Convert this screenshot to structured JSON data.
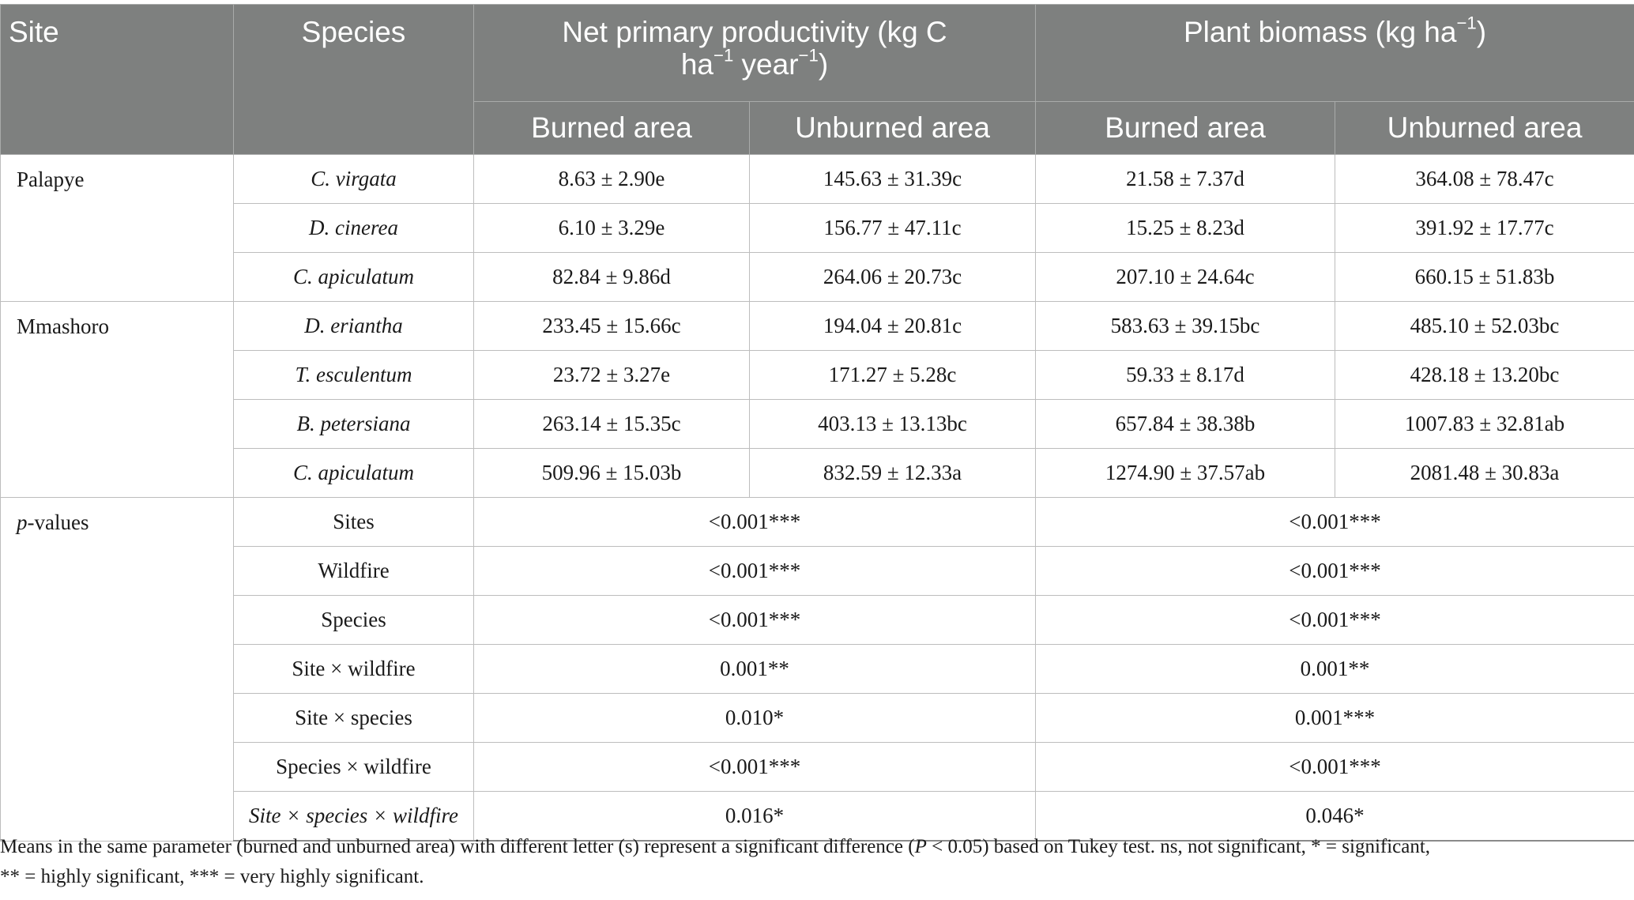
{
  "table": {
    "headers": {
      "site": "Site",
      "species": "Species",
      "npp_line1": "Net primary productivity (kg C",
      "npp_unit_a": "ha",
      "npp_unit_a_sup": "−1",
      "npp_unit_b": " year",
      "npp_unit_b_sup": "−1",
      "npp_unit_end": ")",
      "biomass_text": "Plant biomass (kg ha",
      "biomass_sup": "−1",
      "biomass_end": ")",
      "burned": "Burned area",
      "unburned": "Unburned area"
    },
    "sites": [
      {
        "name": "Palapye",
        "rows": [
          {
            "species": "C. virgata",
            "npp_burned": "8.63 ± 2.90e",
            "npp_unburned": "145.63 ± 31.39c",
            "bio_burned": "21.58 ± 7.37d",
            "bio_unburned": "364.08 ± 78.47c"
          },
          {
            "species": "D. cinerea",
            "npp_burned": "6.10 ± 3.29e",
            "npp_unburned": "156.77 ± 47.11c",
            "bio_burned": "15.25 ± 8.23d",
            "bio_unburned": "391.92 ± 17.77c"
          },
          {
            "species": "C. apiculatum",
            "npp_burned": "82.84 ± 9.86d",
            "npp_unburned": "264.06 ± 20.73c",
            "bio_burned": "207.10 ± 24.64c",
            "bio_unburned": "660.15 ± 51.83b"
          }
        ]
      },
      {
        "name": "Mmashoro",
        "rows": [
          {
            "species": "D. eriantha",
            "npp_burned": "233.45 ± 15.66c",
            "npp_unburned": "194.04 ± 20.81c",
            "bio_burned": "583.63 ± 39.15bc",
            "bio_unburned": "485.10 ± 52.03bc"
          },
          {
            "species": "T. esculentum",
            "npp_burned": "23.72 ± 3.27e",
            "npp_unburned": "171.27 ± 5.28c",
            "bio_burned": "59.33 ± 8.17d",
            "bio_unburned": "428.18 ± 13.20bc"
          },
          {
            "species": "B. petersiana",
            "npp_burned": "263.14 ± 15.35c",
            "npp_unburned": "403.13 ± 13.13bc",
            "bio_burned": "657.84 ± 38.38b",
            "bio_unburned": "1007.83 ± 32.81ab"
          },
          {
            "species": "C. apiculatum",
            "npp_burned": "509.96 ± 15.03b",
            "npp_unburned": "832.59 ± 12.33a",
            "bio_burned": "1274.90 ± 37.57ab",
            "bio_unburned": "2081.48 ± 30.83a"
          }
        ]
      }
    ],
    "pvalues": {
      "label_italic": "p",
      "label_rest": "-values",
      "rows": [
        {
          "factor": "Sites",
          "npp": "<0.001***",
          "biomass": "<0.001***"
        },
        {
          "factor": "Wildfire",
          "npp": "<0.001***",
          "biomass": "<0.001***"
        },
        {
          "factor": "Species",
          "npp": "<0.001***",
          "biomass": "<0.001***"
        },
        {
          "factor": "Site × wildfire",
          "npp": "0.001**",
          "biomass": "0.001**"
        },
        {
          "factor": "Site × species",
          "npp": "0.010*",
          "biomass": "0.001***"
        },
        {
          "factor": "Species × wildfire",
          "npp": "<0.001***",
          "biomass": "<0.001***"
        },
        {
          "factor": "Site × species × wildfire",
          "npp": "0.016*",
          "biomass": "0.046*"
        }
      ]
    }
  },
  "footnote": {
    "part1": "Means in the same parameter (burned and unburned area) with different letter (s) represent a significant difference (",
    "p_italic": "P",
    "part2": " < 0.05) based on Tukey test. ns, not significant, * = significant,",
    "line2": "** = highly significant, *** = very highly significant."
  }
}
